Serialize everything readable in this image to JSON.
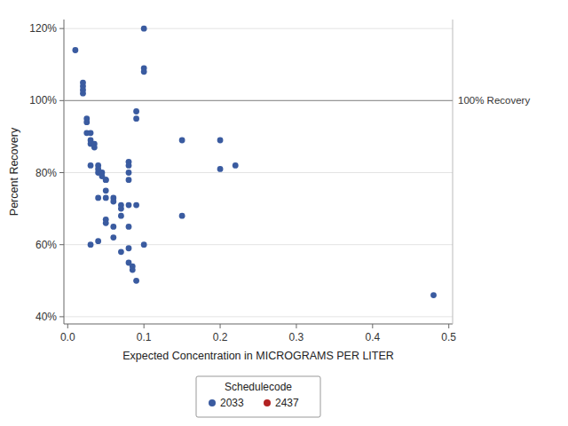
{
  "chart_data": {
    "type": "scatter",
    "x_label": "Expected Concentration in MICROGRAMS PER LITER",
    "y_label": "Percent Recovery",
    "xlim": [
      -0.005,
      0.505
    ],
    "ylim": [
      0.38,
      1.225
    ],
    "xticks": [
      {
        "value": 0.0,
        "label": "0.0"
      },
      0.1,
      0.2,
      0.3,
      0.4,
      0.5
    ],
    "yticks": [
      {
        "value": 0.4,
        "label": "40%"
      },
      {
        "value": 0.6,
        "label": "60%"
      },
      {
        "value": 0.8,
        "label": "80%"
      },
      {
        "value": 1.0,
        "label": "100%"
      },
      {
        "value": 1.2,
        "label": "120%"
      }
    ],
    "grid": true,
    "legend": "bottom",
    "legend_title": "Schedulecode",
    "reference_lines": [
      {
        "value": 1.0,
        "label": "100% Recovery"
      }
    ],
    "series": [
      {
        "name": "2033",
        "color": "#3A5BA0",
        "x": [
          0.01,
          0.02,
          0.02,
          0.02,
          0.02,
          0.025,
          0.025,
          0.025,
          0.03,
          0.03,
          0.03,
          0.03,
          0.03,
          0.035,
          0.035,
          0.04,
          0.04,
          0.04,
          0.04,
          0.04,
          0.045,
          0.045,
          0.05,
          0.05,
          0.05,
          0.05,
          0.05,
          0.05,
          0.06,
          0.06,
          0.06,
          0.06,
          0.07,
          0.07,
          0.07,
          0.07,
          0.08,
          0.08,
          0.08,
          0.08,
          0.08,
          0.08,
          0.08,
          0.08,
          0.085,
          0.085,
          0.09,
          0.09,
          0.09,
          0.09,
          0.1,
          0.1,
          0.1,
          0.1,
          0.15,
          0.15,
          0.2,
          0.2,
          0.22,
          0.48
        ],
        "values": [
          1.14,
          1.05,
          1.04,
          1.03,
          1.02,
          0.95,
          0.94,
          0.91,
          0.91,
          0.89,
          0.88,
          0.82,
          0.6,
          0.88,
          0.87,
          0.82,
          0.81,
          0.8,
          0.73,
          0.61,
          0.8,
          0.79,
          0.78,
          0.78,
          0.75,
          0.73,
          0.67,
          0.66,
          0.73,
          0.72,
          0.65,
          0.62,
          0.71,
          0.7,
          0.68,
          0.58,
          0.83,
          0.82,
          0.8,
          0.78,
          0.71,
          0.65,
          0.59,
          0.55,
          0.54,
          0.53,
          0.97,
          0.95,
          0.71,
          0.5,
          1.2,
          1.09,
          1.08,
          0.6,
          0.89,
          0.68,
          0.89,
          0.81,
          0.82,
          0.46
        ]
      },
      {
        "name": "2437",
        "color": "#B22222",
        "x": [],
        "values": []
      }
    ]
  }
}
